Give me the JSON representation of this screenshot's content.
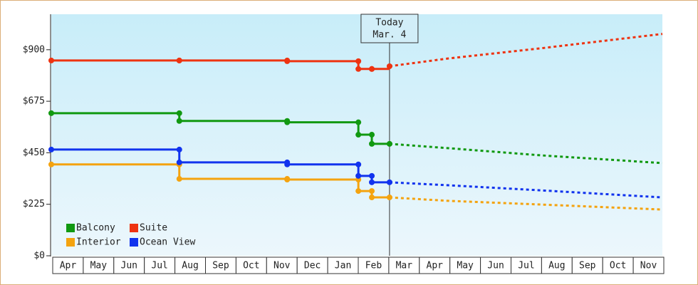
{
  "chart_data": {
    "type": "step-line",
    "categories": [
      "Apr",
      "May",
      "Jun",
      "Jul",
      "Aug",
      "Sep",
      "Oct",
      "Nov",
      "Dec",
      "Jan",
      "Feb",
      "Mar",
      "Apr",
      "May",
      "Jun",
      "Jul",
      "Aug",
      "Sep",
      "Oct",
      "Nov"
    ],
    "xlim": [
      0,
      20
    ],
    "ylim": [
      0,
      1055
    ],
    "yticks": [
      {
        "value": 0,
        "label": "$0"
      },
      {
        "value": 225,
        "label": "$225"
      },
      {
        "value": 450,
        "label": "$450"
      },
      {
        "value": 675,
        "label": "$675"
      },
      {
        "value": 900,
        "label": "$900"
      }
    ],
    "today_label": "Today",
    "today_date": "Mar. 4",
    "series": [
      {
        "name": "Balcony",
        "color": "#119911",
        "x": [
          0,
          4.19,
          7.72,
          10.05,
          10.49,
          11.07
        ],
        "values": [
          623,
          589,
          583,
          529,
          489,
          489
        ],
        "forecast_x": [
          11.07,
          13,
          16,
          20
        ],
        "forecast_values": [
          489,
          470,
          439,
          405
        ]
      },
      {
        "name": "Suite",
        "color": "#ee3311",
        "x": [
          0,
          4.19,
          7.72,
          10.05,
          10.49,
          11.07
        ],
        "values": [
          853,
          853,
          850,
          816,
          816,
          828
        ],
        "forecast_x": [
          11.07,
          13,
          16,
          20
        ],
        "forecast_values": [
          828,
          862,
          906,
          969
        ]
      },
      {
        "name": "Interior",
        "color": "#f4a30f",
        "x": [
          0,
          4.19,
          7.72,
          10.05,
          10.49,
          11.07
        ],
        "values": [
          399,
          336,
          333,
          283,
          255,
          255
        ],
        "forecast_x": [
          11.07,
          13,
          16,
          20
        ],
        "forecast_values": [
          255,
          240,
          224,
          202
        ]
      },
      {
        "name": "Ocean View",
        "color": "#1133ee",
        "x": [
          0,
          4.19,
          7.72,
          10.05,
          10.49,
          11.07
        ],
        "values": [
          464,
          408,
          399,
          349,
          321,
          321
        ],
        "forecast_x": [
          11.07,
          13,
          16,
          20
        ],
        "forecast_values": [
          321,
          308,
          286,
          255
        ]
      }
    ]
  }
}
